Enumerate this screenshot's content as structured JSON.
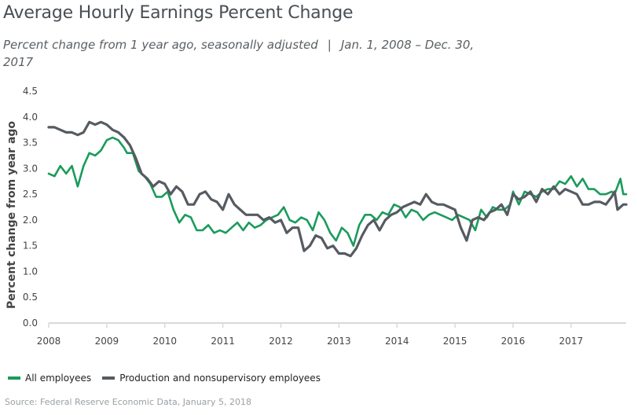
{
  "header": {
    "title": "Average Hourly Earnings Percent Change",
    "subtitle_left": "Percent change from 1 year ago, seasonally adjusted",
    "subtitle_sep": "|",
    "subtitle_right": "Jan. 1, 2008 – Dec. 30, 2017"
  },
  "source": "Source: Federal Reserve Economic Data, January 5, 2018",
  "colors": {
    "all": "#1a9b5b",
    "production": "#555b61",
    "axis": "#d7d9db",
    "text": "#444444"
  },
  "chart_data": {
    "type": "line",
    "title": "Average Hourly Earnings Percent Change",
    "xlabel": "",
    "ylabel": "Percent change from year ago",
    "xlim": [
      2008,
      2017.95
    ],
    "ylim": [
      0,
      4.5
    ],
    "yticks": [
      "0.0",
      "0.5",
      "1.0",
      "1.5",
      "2.0",
      "2.5",
      "3.0",
      "3.5",
      "4.0",
      "4.5"
    ],
    "xticks": [
      "2008",
      "2009",
      "2010",
      "2011",
      "2012",
      "2013",
      "2014",
      "2015",
      "2016",
      "2017"
    ],
    "grid": false,
    "legend": "bottom-left",
    "series": [
      {
        "name": "All employees",
        "points": [
          [
            2008.0,
            2.9
          ],
          [
            2008.1,
            2.85
          ],
          [
            2008.2,
            3.05
          ],
          [
            2008.3,
            2.9
          ],
          [
            2008.4,
            3.05
          ],
          [
            2008.5,
            2.65
          ],
          [
            2008.6,
            3.05
          ],
          [
            2008.7,
            3.3
          ],
          [
            2008.8,
            3.25
          ],
          [
            2008.9,
            3.35
          ],
          [
            2009.0,
            3.55
          ],
          [
            2009.1,
            3.6
          ],
          [
            2009.2,
            3.55
          ],
          [
            2009.3,
            3.4
          ],
          [
            2009.35,
            3.3
          ],
          [
            2009.45,
            3.3
          ],
          [
            2009.55,
            2.95
          ],
          [
            2009.65,
            2.85
          ],
          [
            2009.75,
            2.7
          ],
          [
            2009.85,
            2.45
          ],
          [
            2009.95,
            2.45
          ],
          [
            2010.05,
            2.55
          ],
          [
            2010.15,
            2.2
          ],
          [
            2010.25,
            1.95
          ],
          [
            2010.35,
            2.1
          ],
          [
            2010.45,
            2.05
          ],
          [
            2010.55,
            1.8
          ],
          [
            2010.65,
            1.8
          ],
          [
            2010.75,
            1.9
          ],
          [
            2010.85,
            1.75
          ],
          [
            2010.95,
            1.8
          ],
          [
            2011.05,
            1.75
          ],
          [
            2011.15,
            1.85
          ],
          [
            2011.25,
            1.95
          ],
          [
            2011.35,
            1.8
          ],
          [
            2011.45,
            1.95
          ],
          [
            2011.55,
            1.85
          ],
          [
            2011.65,
            1.9
          ],
          [
            2011.75,
            2.0
          ],
          [
            2011.85,
            2.05
          ],
          [
            2011.95,
            2.1
          ],
          [
            2012.05,
            2.25
          ],
          [
            2012.15,
            2.0
          ],
          [
            2012.25,
            1.95
          ],
          [
            2012.35,
            2.05
          ],
          [
            2012.45,
            2.0
          ],
          [
            2012.55,
            1.8
          ],
          [
            2012.65,
            2.15
          ],
          [
            2012.75,
            2.0
          ],
          [
            2012.85,
            1.75
          ],
          [
            2012.95,
            1.6
          ],
          [
            2013.05,
            1.85
          ],
          [
            2013.15,
            1.75
          ],
          [
            2013.25,
            1.5
          ],
          [
            2013.35,
            1.9
          ],
          [
            2013.45,
            2.1
          ],
          [
            2013.55,
            2.1
          ],
          [
            2013.65,
            2.0
          ],
          [
            2013.75,
            2.15
          ],
          [
            2013.85,
            2.1
          ],
          [
            2013.95,
            2.3
          ],
          [
            2014.05,
            2.25
          ],
          [
            2014.15,
            2.05
          ],
          [
            2014.25,
            2.2
          ],
          [
            2014.35,
            2.15
          ],
          [
            2014.45,
            2.0
          ],
          [
            2014.55,
            2.1
          ],
          [
            2014.65,
            2.15
          ],
          [
            2014.75,
            2.1
          ],
          [
            2014.85,
            2.05
          ],
          [
            2014.95,
            2.0
          ],
          [
            2015.05,
            2.1
          ],
          [
            2015.15,
            2.05
          ],
          [
            2015.25,
            2.0
          ],
          [
            2015.35,
            1.8
          ],
          [
            2015.45,
            2.2
          ],
          [
            2015.55,
            2.05
          ],
          [
            2015.65,
            2.25
          ],
          [
            2015.75,
            2.2
          ],
          [
            2015.85,
            2.2
          ],
          [
            2015.95,
            2.3
          ],
          [
            2016.0,
            2.55
          ],
          [
            2016.1,
            2.3
          ],
          [
            2016.2,
            2.55
          ],
          [
            2016.3,
            2.5
          ],
          [
            2016.4,
            2.45
          ],
          [
            2016.5,
            2.55
          ],
          [
            2016.6,
            2.6
          ],
          [
            2016.7,
            2.6
          ],
          [
            2016.8,
            2.75
          ],
          [
            2016.9,
            2.7
          ],
          [
            2017.0,
            2.85
          ],
          [
            2017.1,
            2.65
          ],
          [
            2017.2,
            2.8
          ],
          [
            2017.3,
            2.6
          ],
          [
            2017.4,
            2.6
          ],
          [
            2017.5,
            2.5
          ],
          [
            2017.6,
            2.5
          ],
          [
            2017.7,
            2.55
          ],
          [
            2017.75,
            2.5
          ],
          [
            2017.85,
            2.8
          ],
          [
            2017.9,
            2.5
          ],
          [
            2017.95,
            2.5
          ]
        ]
      },
      {
        "name": "Production and nonsupervisory employees",
        "points": [
          [
            2008.0,
            3.8
          ],
          [
            2008.1,
            3.8
          ],
          [
            2008.2,
            3.75
          ],
          [
            2008.3,
            3.7
          ],
          [
            2008.4,
            3.7
          ],
          [
            2008.5,
            3.65
          ],
          [
            2008.6,
            3.7
          ],
          [
            2008.7,
            3.9
          ],
          [
            2008.8,
            3.85
          ],
          [
            2008.9,
            3.9
          ],
          [
            2009.0,
            3.85
          ],
          [
            2009.1,
            3.75
          ],
          [
            2009.2,
            3.7
          ],
          [
            2009.3,
            3.6
          ],
          [
            2009.4,
            3.45
          ],
          [
            2009.5,
            3.2
          ],
          [
            2009.6,
            2.9
          ],
          [
            2009.7,
            2.8
          ],
          [
            2009.8,
            2.65
          ],
          [
            2009.9,
            2.75
          ],
          [
            2010.0,
            2.7
          ],
          [
            2010.1,
            2.5
          ],
          [
            2010.2,
            2.65
          ],
          [
            2010.3,
            2.55
          ],
          [
            2010.4,
            2.3
          ],
          [
            2010.5,
            2.3
          ],
          [
            2010.6,
            2.5
          ],
          [
            2010.7,
            2.55
          ],
          [
            2010.8,
            2.4
          ],
          [
            2010.9,
            2.35
          ],
          [
            2011.0,
            2.2
          ],
          [
            2011.1,
            2.5
          ],
          [
            2011.2,
            2.3
          ],
          [
            2011.3,
            2.2
          ],
          [
            2011.4,
            2.1
          ],
          [
            2011.5,
            2.1
          ],
          [
            2011.6,
            2.1
          ],
          [
            2011.7,
            2.0
          ],
          [
            2011.8,
            2.05
          ],
          [
            2011.9,
            1.95
          ],
          [
            2012.0,
            2.0
          ],
          [
            2012.1,
            1.75
          ],
          [
            2012.2,
            1.85
          ],
          [
            2012.3,
            1.85
          ],
          [
            2012.4,
            1.4
          ],
          [
            2012.5,
            1.5
          ],
          [
            2012.6,
            1.7
          ],
          [
            2012.7,
            1.65
          ],
          [
            2012.8,
            1.45
          ],
          [
            2012.9,
            1.5
          ],
          [
            2013.0,
            1.35
          ],
          [
            2013.1,
            1.35
          ],
          [
            2013.2,
            1.3
          ],
          [
            2013.3,
            1.45
          ],
          [
            2013.4,
            1.7
          ],
          [
            2013.5,
            1.9
          ],
          [
            2013.6,
            2.0
          ],
          [
            2013.7,
            1.8
          ],
          [
            2013.8,
            2.0
          ],
          [
            2013.9,
            2.1
          ],
          [
            2014.0,
            2.15
          ],
          [
            2014.1,
            2.25
          ],
          [
            2014.2,
            2.3
          ],
          [
            2014.3,
            2.35
          ],
          [
            2014.4,
            2.3
          ],
          [
            2014.5,
            2.5
          ],
          [
            2014.6,
            2.35
          ],
          [
            2014.7,
            2.3
          ],
          [
            2014.8,
            2.3
          ],
          [
            2014.9,
            2.25
          ],
          [
            2015.0,
            2.2
          ],
          [
            2015.1,
            1.85
          ],
          [
            2015.2,
            1.6
          ],
          [
            2015.3,
            2.0
          ],
          [
            2015.4,
            2.05
          ],
          [
            2015.5,
            2.0
          ],
          [
            2015.6,
            2.15
          ],
          [
            2015.7,
            2.2
          ],
          [
            2015.8,
            2.3
          ],
          [
            2015.9,
            2.1
          ],
          [
            2016.0,
            2.5
          ],
          [
            2016.1,
            2.4
          ],
          [
            2016.2,
            2.45
          ],
          [
            2016.3,
            2.55
          ],
          [
            2016.4,
            2.35
          ],
          [
            2016.5,
            2.6
          ],
          [
            2016.6,
            2.5
          ],
          [
            2016.7,
            2.65
          ],
          [
            2016.8,
            2.5
          ],
          [
            2016.9,
            2.6
          ],
          [
            2017.0,
            2.55
          ],
          [
            2017.1,
            2.5
          ],
          [
            2017.2,
            2.3
          ],
          [
            2017.3,
            2.3
          ],
          [
            2017.4,
            2.35
          ],
          [
            2017.5,
            2.35
          ],
          [
            2017.6,
            2.3
          ],
          [
            2017.7,
            2.45
          ],
          [
            2017.75,
            2.55
          ],
          [
            2017.8,
            2.2
          ],
          [
            2017.9,
            2.3
          ],
          [
            2017.95,
            2.3
          ]
        ]
      }
    ]
  }
}
